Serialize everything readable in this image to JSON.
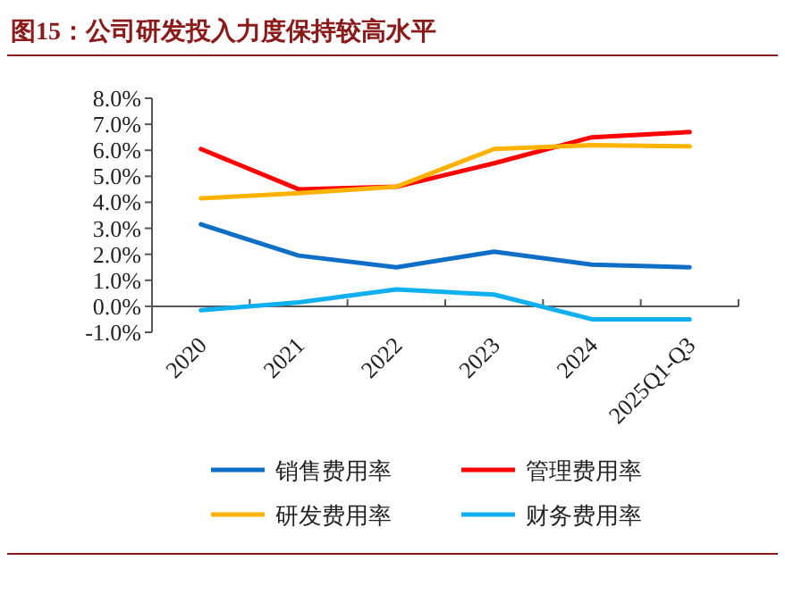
{
  "chart_data": {
    "type": "line",
    "title": "图15：公司研发投入力度保持较高水平",
    "categories": [
      "2020",
      "2021",
      "2022",
      "2023",
      "2024",
      "2025Q1-Q3"
    ],
    "series": [
      {
        "name": "销售费用率",
        "color": "#0f6fc6",
        "values": [
          3.15,
          1.95,
          1.5,
          2.1,
          1.6,
          1.5
        ]
      },
      {
        "name": "管理费用率",
        "color": "#ff0000",
        "values": [
          6.05,
          4.5,
          4.6,
          5.5,
          6.5,
          6.7
        ]
      },
      {
        "name": "研发费用率",
        "color": "#ffb300",
        "values": [
          4.15,
          4.35,
          4.6,
          6.05,
          6.2,
          6.15
        ]
      },
      {
        "name": "财务费用率",
        "color": "#10b0f0",
        "values": [
          -0.15,
          0.15,
          0.65,
          0.45,
          -0.5,
          -0.5
        ]
      }
    ],
    "ylim": [
      -1,
      8
    ],
    "yticks": [
      {
        "value": -1,
        "label": "-1.0%"
      },
      {
        "value": 0,
        "label": "0.0%"
      },
      {
        "value": 1,
        "label": "1.0%"
      },
      {
        "value": 2,
        "label": "2.0%"
      },
      {
        "value": 3,
        "label": "3.0%"
      },
      {
        "value": 4,
        "label": "4.0%"
      },
      {
        "value": 5,
        "label": "5.0%"
      },
      {
        "value": 6,
        "label": "6.0%"
      },
      {
        "value": 7,
        "label": "7.0%"
      },
      {
        "value": 8,
        "label": "8.0%"
      }
    ],
    "legend": "bottom"
  }
}
